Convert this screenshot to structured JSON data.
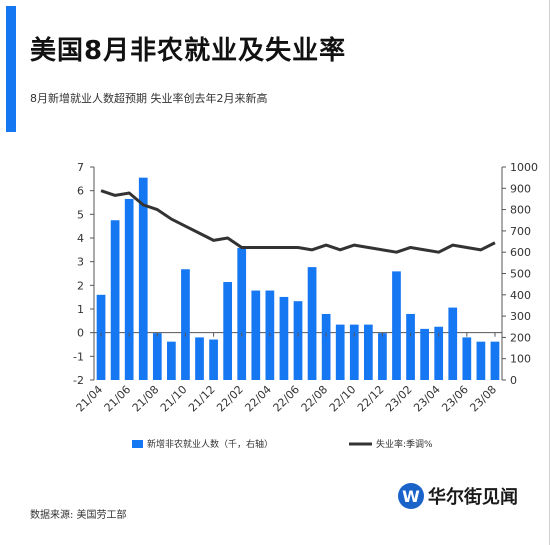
{
  "header": {
    "title": "美国8月非农就业及失业率",
    "subtitle": "8月新增就业人数超预期  失业率创去年2月来新高"
  },
  "footer": {
    "source": "数据来源:   美国劳工部",
    "logo_text": "华尔街见闻",
    "logo_glyph": "W"
  },
  "colors": {
    "accent": "#1677f2",
    "bar": "#1677f2",
    "line": "#333333"
  },
  "chart_data": {
    "type": "bar",
    "months": [
      "21/04",
      "21/05",
      "21/06",
      "21/07",
      "21/08",
      "21/09",
      "21/10",
      "21/11",
      "21/12",
      "22/01",
      "22/02",
      "22/03",
      "22/04",
      "22/05",
      "22/06",
      "22/07",
      "22/08",
      "22/09",
      "22/10",
      "22/11",
      "22/12",
      "23/01",
      "23/02",
      "23/03",
      "23/04",
      "23/05",
      "23/06",
      "23/07",
      "23/08"
    ],
    "x_tick_labels": [
      "21/04",
      "21/06",
      "21/08",
      "21/10",
      "21/12",
      "22/02",
      "22/04",
      "22/06",
      "22/08",
      "22/10",
      "22/12",
      "23/02",
      "23/04",
      "23/06",
      "23/08"
    ],
    "series": [
      {
        "name": "新增非农就业人数（千，右轴）",
        "type": "bar",
        "axis": "right",
        "values": [
          400,
          750,
          850,
          950,
          220,
          180,
          520,
          200,
          190,
          460,
          620,
          420,
          420,
          390,
          370,
          530,
          310,
          260,
          260,
          260,
          220,
          510,
          310,
          240,
          250,
          340,
          200,
          180,
          180
        ]
      },
      {
        "name": "失业率:季调%",
        "type": "line",
        "axis": "left",
        "values": [
          6.0,
          5.8,
          5.9,
          5.4,
          5.2,
          4.8,
          4.5,
          4.2,
          3.9,
          4.0,
          3.6,
          3.6,
          3.6,
          3.6,
          3.6,
          3.5,
          3.7,
          3.5,
          3.7,
          3.6,
          3.5,
          3.4,
          3.6,
          3.5,
          3.4,
          3.7,
          3.6,
          3.5,
          3.8
        ]
      }
    ],
    "left_axis": {
      "ticks": [
        "-2",
        "-1",
        "0",
        "1",
        "2",
        "3",
        "4",
        "5",
        "6",
        "7"
      ],
      "ylim": [
        -2,
        7
      ]
    },
    "right_axis": {
      "ticks": [
        "0",
        "100",
        "200",
        "300",
        "400",
        "500",
        "600",
        "700",
        "800",
        "900",
        "1000"
      ],
      "ylim": [
        0,
        1000
      ]
    },
    "legend_position": "bottom",
    "grid": false
  }
}
